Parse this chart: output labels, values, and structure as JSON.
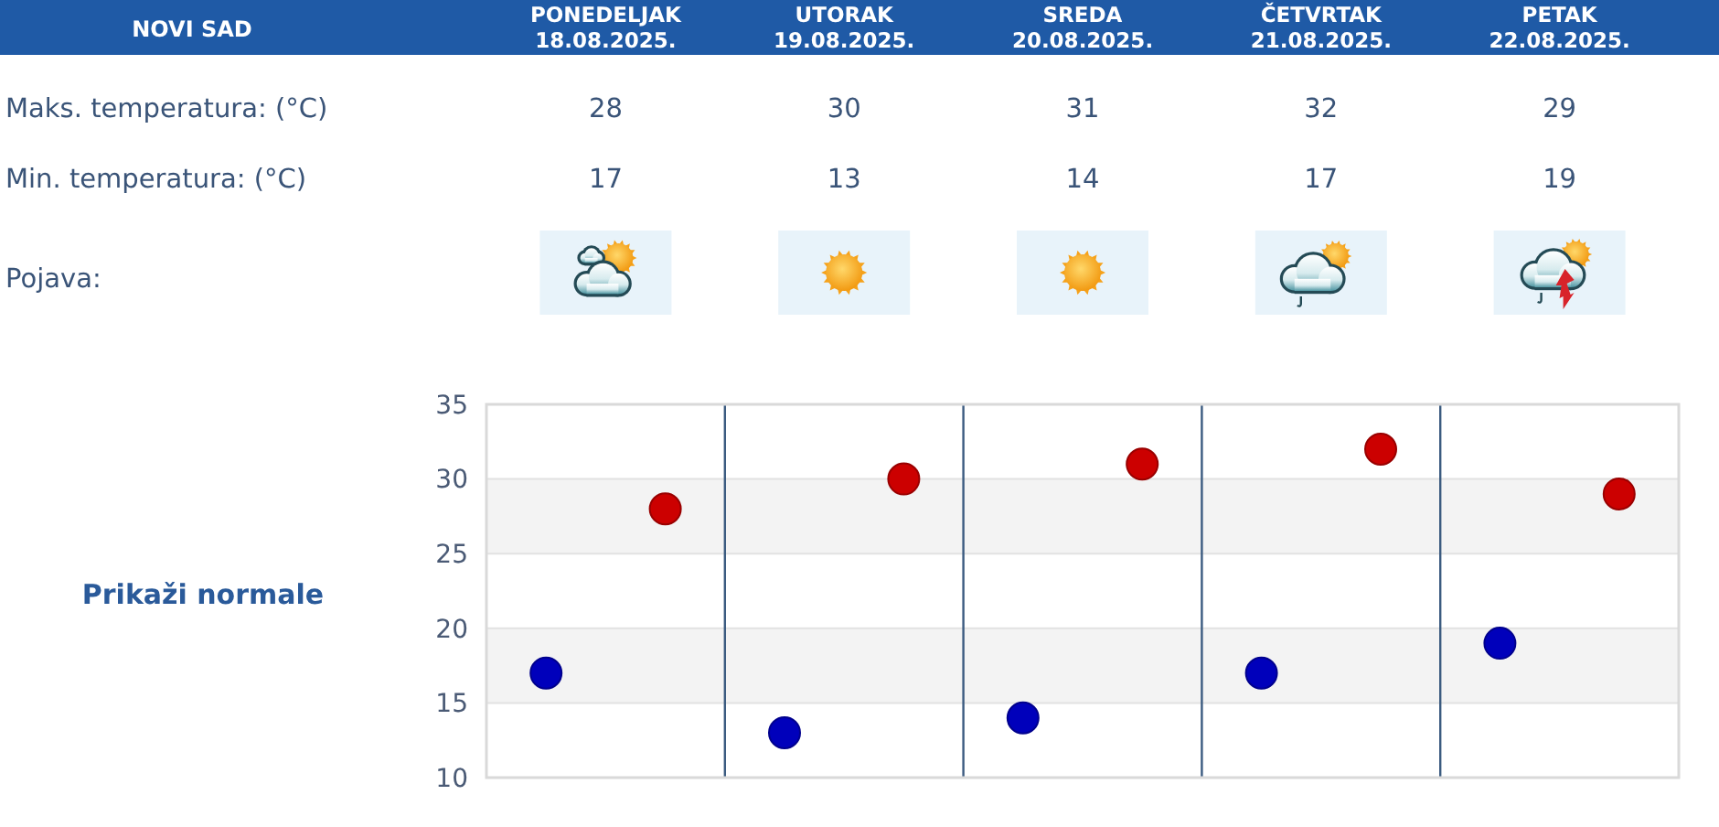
{
  "chart_data": {
    "type": "scatter",
    "title": "NOVI SAD",
    "categories": [
      null,
      null,
      null,
      null,
      null
    ],
    "series": [
      {
        "color": "#cc0000",
        "values": [
          28,
          30,
          31,
          32,
          29
        ]
      },
      {
        "color": "#0000bb",
        "values": [
          17,
          13,
          14,
          17,
          19
        ]
      }
    ],
    "ylim": [
      10,
      35
    ],
    "yticks": [
      10,
      15,
      20,
      25,
      30,
      35
    ],
    "grid": true,
    "marker": "circle",
    "data_labels": true,
    "bands": [
      {
        "axis": "y",
        "from": 15,
        "to": 20,
        "color": "#f3f3f3"
      },
      {
        "axis": "y",
        "from": 25,
        "to": 30,
        "color": "#f3f3f3"
      }
    ],
    "annotations": [
      "PONEDELJAK 18.08.2025.",
      "UTORAK 19.08.2025.",
      "SREDA 20.08.2025.",
      "ČETVRTAK 21.08.2025.",
      "PETAK 22.08.2025.",
      "Maks. temperatura: (°C)",
      "Min. temperatura: (°C)",
      "Pojava:",
      "Prikaži normale"
    ]
  }
}
